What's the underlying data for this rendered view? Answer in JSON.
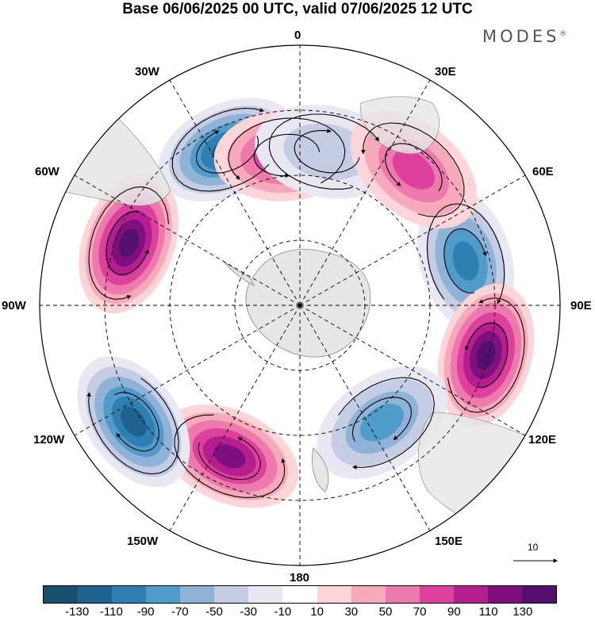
{
  "title": "Base 06/06/2025 00 UTC, valid 07/06/2025 12 UTC",
  "brand": "MODES",
  "brand_mark": "®",
  "longitude_labels": {
    "lon_0": "0",
    "lon_30e": "30E",
    "lon_60e": "60E",
    "lon_90e": "90E",
    "lon_120e": "120E",
    "lon_150e": "150E",
    "lon_180": "180",
    "lon_150w": "150W",
    "lon_120w": "120W",
    "lon_90w": "90W",
    "lon_60w": "60W",
    "lon_30w": "30W"
  },
  "colorbar": {
    "ticks": [
      "-130",
      "-110",
      "-90",
      "-70",
      "-50",
      "-30",
      "-10",
      "10",
      "30",
      "50",
      "70",
      "90",
      "110",
      "130"
    ],
    "colors": [
      "#1b4f6e",
      "#1f6391",
      "#2f7fb2",
      "#4f9bc9",
      "#8fb2d6",
      "#c5cde4",
      "#e8e7f2",
      "#ffffff",
      "#fbd5d8",
      "#f5a9bb",
      "#ed7aad",
      "#de409d",
      "#b51e8f",
      "#7e0f7e",
      "#54106c"
    ]
  },
  "vector_reference": {
    "label": "10"
  },
  "map": {
    "projection": "south polar stereographic",
    "land_color": "#e6e6e6",
    "anomalies": [
      {
        "lon": 75,
        "colat": 0.66,
        "value": -95
      },
      {
        "lon": 105,
        "colat": 0.74,
        "value": 130
      },
      {
        "lon": 145,
        "colat": 0.55,
        "value": -85
      },
      {
        "lon": 205,
        "colat": 0.64,
        "value": 125
      },
      {
        "lon": 235,
        "colat": 0.78,
        "value": -125
      },
      {
        "lon": 290,
        "colat": 0.7,
        "value": 130
      },
      {
        "lon": 335,
        "colat": 0.66,
        "value": -120
      },
      {
        "lon": 355,
        "colat": 0.58,
        "value": 95
      },
      {
        "lon": 10,
        "colat": 0.6,
        "value": -45
      },
      {
        "lon": 40,
        "colat": 0.68,
        "value": 75
      }
    ]
  }
}
